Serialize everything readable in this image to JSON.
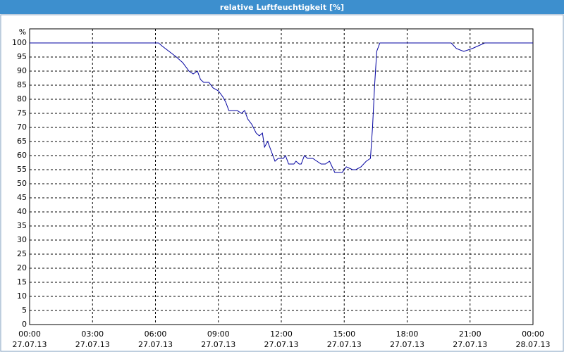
{
  "chart_data": {
    "type": "line",
    "title": "relative Luftfeuchtigkeit [%]",
    "y_label": "%",
    "x": [
      0,
      6.15,
      6.3,
      6.65,
      7.0,
      7.3,
      7.6,
      7.8,
      8.0,
      8.15,
      8.3,
      8.55,
      8.75,
      9.0,
      9.2,
      9.35,
      9.5,
      9.7,
      9.9,
      10.1,
      10.25,
      10.4,
      10.6,
      10.8,
      10.95,
      11.1,
      11.2,
      11.35,
      11.5,
      11.7,
      11.85,
      12.1,
      12.2,
      12.35,
      12.6,
      12.7,
      12.85,
      12.95,
      13.1,
      13.25,
      13.5,
      13.7,
      13.9,
      14.1,
      14.3,
      14.55,
      14.9,
      15.1,
      15.4,
      15.55,
      15.8,
      16.05,
      16.25,
      16.35,
      16.45,
      16.55,
      16.7,
      17.4,
      18.6,
      20.1,
      20.35,
      20.7,
      21.1,
      21.7,
      24
    ],
    "series": [
      {
        "name": "relative Luftfeuchtigkeit",
        "color": "#0000a0",
        "values": [
          100,
          100,
          99,
          97,
          95,
          93,
          90,
          89,
          90,
          87,
          86,
          86,
          84,
          83,
          81,
          79,
          76,
          76,
          76,
          75,
          76,
          73,
          71,
          68,
          67,
          68,
          63,
          65,
          62,
          58,
          59,
          59,
          60,
          57,
          57,
          58,
          57,
          57,
          60,
          59,
          59,
          58,
          57,
          57,
          58,
          54,
          54,
          56,
          55,
          55,
          56,
          58,
          59,
          70,
          85,
          97,
          100,
          100,
          100,
          100,
          98,
          97,
          98,
          100,
          100
        ]
      }
    ],
    "xlim": [
      0,
      24
    ],
    "xticks": [
      {
        "value": 0,
        "label": "00:00\n27.07.13"
      },
      {
        "value": 3,
        "label": "03:00\n27.07.13"
      },
      {
        "value": 6,
        "label": "06:00\n27.07.13"
      },
      {
        "value": 9,
        "label": "09:00\n27.07.13"
      },
      {
        "value": 12,
        "label": "12:00\n27.07.13"
      },
      {
        "value": 15,
        "label": "15:00\n27.07.13"
      },
      {
        "value": 18,
        "label": "18:00\n27.07.13"
      },
      {
        "value": 21,
        "label": "21:00\n27.07.13"
      },
      {
        "value": 24,
        "label": "00:00\n28.07.13"
      }
    ],
    "ylim": [
      0,
      105
    ],
    "yticks": [
      0,
      5,
      10,
      15,
      20,
      25,
      30,
      35,
      40,
      45,
      50,
      55,
      60,
      65,
      70,
      75,
      80,
      85,
      90,
      95,
      100
    ],
    "grid": true
  }
}
